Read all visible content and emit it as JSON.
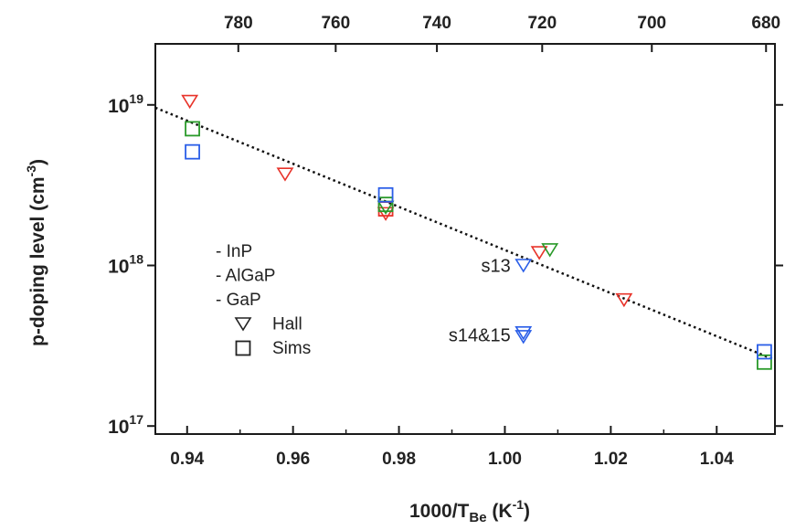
{
  "chart_data": {
    "type": "scatter",
    "xlabel": {
      "main": "1000/T",
      "sub": "Be",
      "unit_open": " (K",
      "unit_exp": "-1",
      "unit_close": ")"
    },
    "ylabel": {
      "main": "p-doping level (cm",
      "exp": "-3",
      "close": ")"
    },
    "xlim": [
      0.934,
      1.051
    ],
    "ylim_log10": [
      16.95,
      19.38
    ],
    "y_scale": "log",
    "x_ticks": [
      "0.94",
      "0.96",
      "0.98",
      "1.00",
      "1.02",
      "1.04"
    ],
    "x_tick_values": [
      0.94,
      0.96,
      0.98,
      1.0,
      1.02,
      1.04
    ],
    "y_ticks": [
      {
        "base": "10",
        "exp": "19",
        "value": 1e+19
      },
      {
        "base": "10",
        "exp": "18",
        "value": 1e+18
      },
      {
        "base": "10",
        "exp": "17",
        "value": 1e+17
      }
    ],
    "top_axis": {
      "ticks": [
        "780",
        "760",
        "740",
        "720",
        "700",
        "680"
      ],
      "label": ""
    },
    "colors": {
      "InP": "#e8332a",
      "AlGaP": "#2a9a2a",
      "GaP": "#2a5ee8",
      "fit": "#111111"
    },
    "series": [
      {
        "name": "InP",
        "marker": "triangle",
        "color": "#e8332a",
        "points": [
          {
            "x": 0.9405,
            "y": 1.05e+19
          },
          {
            "x": 0.9585,
            "y": 3.7e+18
          },
          {
            "x": 0.9775,
            "y": 2.1e+18
          },
          {
            "x": 1.0065,
            "y": 1.2e+18
          },
          {
            "x": 1.0225,
            "y": 6.1e+17
          }
        ]
      },
      {
        "name": "InP",
        "marker": "square",
        "color": "#e8332a",
        "points": [
          {
            "x": 0.9775,
            "y": 2.25e+18
          }
        ]
      },
      {
        "name": "AlGaP",
        "marker": "triangle",
        "color": "#2a9a2a",
        "points": [
          {
            "x": 0.9775,
            "y": 2.3e+18
          },
          {
            "x": 1.0085,
            "y": 1.25e+18
          }
        ]
      },
      {
        "name": "AlGaP",
        "marker": "square",
        "color": "#2a9a2a",
        "points": [
          {
            "x": 0.941,
            "y": 7.1e+18
          },
          {
            "x": 0.9775,
            "y": 2.4e+18
          },
          {
            "x": 1.049,
            "y": 2.5e+17
          }
        ]
      },
      {
        "name": "GaP",
        "marker": "triangle",
        "color": "#2a5ee8",
        "points": [
          {
            "x": 1.0035,
            "y": 1e+18
          },
          {
            "x": 1.0035,
            "y": 3.8e+17
          },
          {
            "x": 1.0035,
            "y": 3.6e+17
          }
        ]
      },
      {
        "name": "GaP",
        "marker": "square",
        "color": "#2a5ee8",
        "points": [
          {
            "x": 0.941,
            "y": 5.1e+18
          },
          {
            "x": 0.9775,
            "y": 2.75e+18
          },
          {
            "x": 1.049,
            "y": 2.9e+17
          }
        ]
      }
    ],
    "fit_line": {
      "style": "dotted",
      "x": [
        0.934,
        1.051
      ],
      "y": [
        9.6e+18,
        2.58e+17
      ]
    },
    "legend": {
      "placement": "left-middle",
      "entries": [
        {
          "label": "- InP",
          "symbol": "none"
        },
        {
          "label": "- AlGaP",
          "symbol": "none"
        },
        {
          "label": "- GaP",
          "symbol": "none"
        },
        {
          "label": "Hall",
          "symbol": "triangle"
        },
        {
          "label": "Sims",
          "symbol": "square"
        }
      ]
    },
    "annotations": [
      {
        "text": "s13",
        "x": 1.0035,
        "y": 1e+18
      },
      {
        "text": "s14&15",
        "x": 1.0035,
        "y": 3.7e+17
      }
    ],
    "grid": false
  }
}
